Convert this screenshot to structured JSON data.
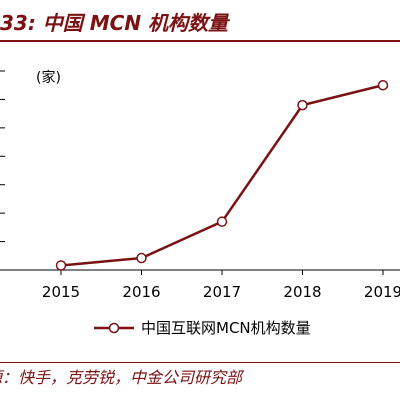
{
  "figure": {
    "title": "33:  中国 MCN 机构数量",
    "source": "源：快手，克劳锐，中金公司研究部"
  },
  "chart_data": {
    "type": "line",
    "title": "",
    "xlabel": "",
    "ylabel": "",
    "unit": "(家)",
    "categories": [
      "2015",
      "2016",
      "2017",
      "2018",
      "2019"
    ],
    "series": [
      {
        "name": "中国互联网MCN机构数量",
        "values": [
          160,
          420,
          1700,
          5800,
          6500
        ],
        "color": "#7a1113"
      }
    ],
    "ylim": [
      0,
      7000
    ],
    "grid": false,
    "legend": "bottom-center",
    "marker": "hollow-circle"
  }
}
